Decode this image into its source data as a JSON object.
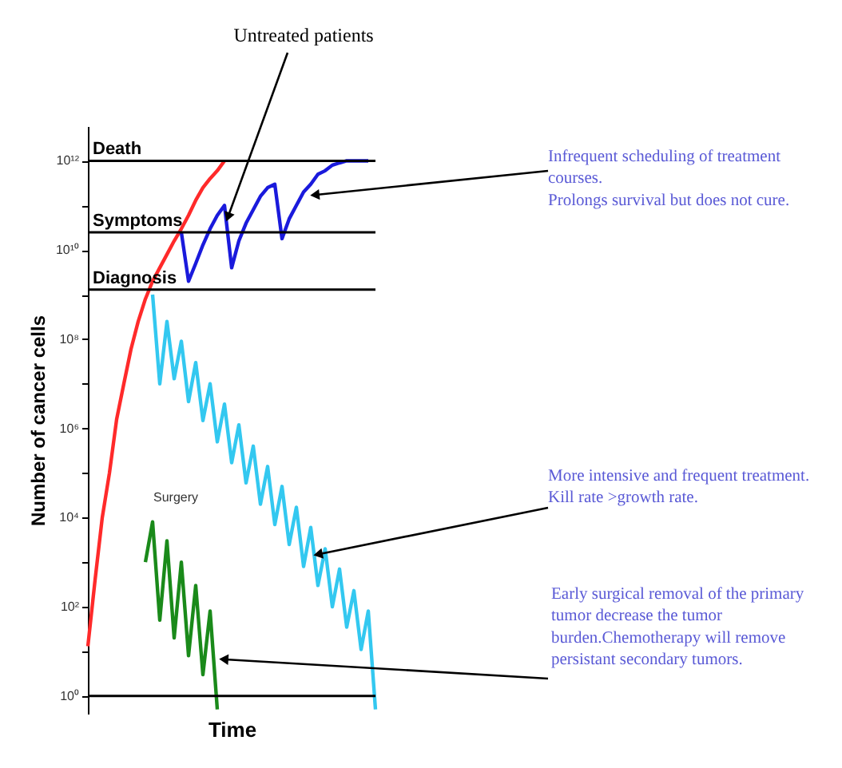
{
  "chart_data": {
    "type": "line",
    "xlabel": "Time",
    "ylabel": "Number of cancer cells",
    "log": "y",
    "tick_labels": "y",
    "categories": [
      null,
      null,
      null,
      null,
      null,
      null,
      null,
      null,
      null,
      null,
      null,
      null,
      null,
      null,
      null,
      null,
      null,
      null,
      null,
      null,
      null,
      null,
      null,
      null,
      null,
      null,
      null,
      null,
      null,
      null,
      null,
      null,
      null,
      null,
      null,
      null,
      null,
      null,
      null,
      null,
      null
    ],
    "ylim": [
      0.4,
      6000000000000.0
    ],
    "yticks": [
      {
        "value": 1,
        "label": "10⁰"
      },
      {
        "value": 10,
        "label": null
      },
      {
        "value": 100,
        "label": "10²"
      },
      {
        "value": 1000,
        "label": null
      },
      {
        "value": 10000,
        "label": "10⁴"
      },
      {
        "value": 100000,
        "label": null
      },
      {
        "value": 1000000,
        "label": "10⁶"
      },
      {
        "value": 10000000,
        "label": null
      },
      {
        "value": 100000000,
        "label": "10⁸"
      },
      {
        "value": 1000000000,
        "label": null
      },
      {
        "value": 10000000000,
        "label": "10¹⁰"
      },
      {
        "value": 100000000000,
        "label": null
      },
      {
        "value": 1000000000000,
        "label": "10¹²"
      }
    ],
    "series": [
      {
        "color": "#ff2a2a",
        "values": [
          13,
          400,
          10000.0,
          100000.0,
          1600000.0,
          10000000.0,
          60000000.0,
          250000000.0,
          800000000.0,
          2000000000.0,
          4000000000.0,
          8000000000.0,
          16000000000.0,
          30000000000.0,
          60000000000.0,
          130000000000.0,
          250000000000.0,
          400000000000.0,
          600000000000.0,
          1000000000000.0,
          null,
          null,
          null,
          null,
          null,
          null,
          null,
          null,
          null,
          null,
          null,
          null,
          null,
          null,
          null,
          null,
          null,
          null,
          null,
          null,
          null
        ]
      },
      {
        "color": "#1a1adc",
        "values": [
          null,
          null,
          null,
          null,
          null,
          null,
          null,
          null,
          null,
          null,
          null,
          null,
          null,
          25000000000.0,
          2000000000.0,
          5000000000.0,
          13000000000.0,
          30000000000.0,
          60000000000.0,
          100000000000.0,
          4000000000.0,
          16000000000.0,
          40000000000.0,
          80000000000.0,
          160000000000.0,
          250000000000.0,
          300000000000.0,
          18000000000.0,
          50000000000.0,
          100000000000.0,
          200000000000.0,
          300000000000.0,
          500000000000.0,
          600000000000.0,
          800000000000.0,
          900000000000.0,
          1000000000000.0,
          1000000000000.0,
          1000000000000.0,
          1000000000000.0,
          null
        ]
      },
      {
        "color": "#33c8f0",
        "values": [
          null,
          null,
          null,
          null,
          null,
          null,
          null,
          null,
          null,
          1000000000.0,
          10000000.0,
          250000000.0,
          13000000.0,
          90000000.0,
          4000000.0,
          30000000.0,
          1500000.0,
          10000000.0,
          500000.0,
          3500000.0,
          170000.0,
          1200000.0,
          60000.0,
          400000.0,
          20000.0,
          140000.0,
          7000.0,
          50000.0,
          2500.0,
          17000.0,
          800,
          6000.0,
          300,
          2000.0,
          100,
          700,
          35,
          230,
          11,
          80,
          0.5
        ]
      },
      {
        "color": "#1a8a1a",
        "values": [
          null,
          null,
          null,
          null,
          null,
          null,
          null,
          null,
          1000.0,
          8000.0,
          50,
          3000.0,
          20,
          1000.0,
          8,
          300,
          3,
          80,
          0.5,
          null,
          null,
          null,
          null,
          null,
          null,
          null,
          null,
          null,
          null,
          null,
          null,
          null,
          null,
          null,
          null,
          null,
          null,
          null,
          null,
          null,
          null
        ]
      }
    ],
    "ref_lines": [
      {
        "axis": "y",
        "value": 1000000000000,
        "label": "Death",
        "color": "#000000"
      },
      {
        "axis": "y",
        "value": 25000000000,
        "label": "Symptoms",
        "color": "#000000"
      },
      {
        "axis": "y",
        "value": 1300000000,
        "label": "Diagnosis",
        "color": "#000000"
      },
      {
        "axis": "y",
        "value": 1,
        "label": null,
        "color": "#000000"
      }
    ],
    "annotations": [
      "Untreated patients",
      "Infrequent scheduling of treatment\ncourses.\nProlongs survival but does not cure.",
      "More intensive and frequent treatment.\nKill rate >growth rate.",
      "Early surgical removal of the primary\ntumor decrease the tumor\nburden.Chemotherapy will remove\npersistant secondary tumors.",
      "Surgery"
    ]
  }
}
